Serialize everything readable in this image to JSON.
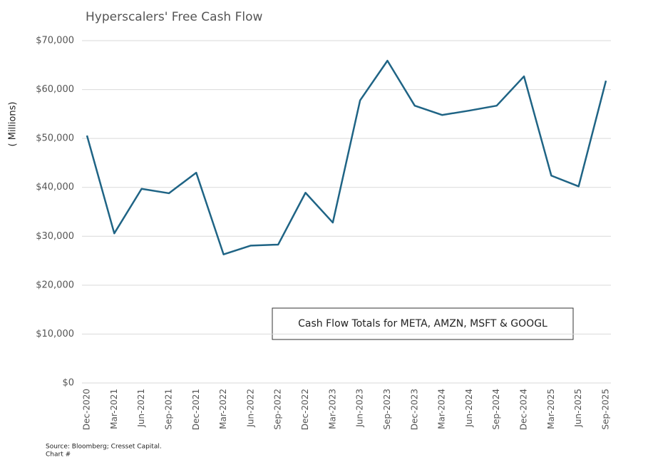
{
  "chart_data": {
    "type": "line",
    "title": "Hyperscalers' Free Cash Flow",
    "y_label": "( Millions)",
    "annotation": "Cash Flow Totals for META, AMZN, MSFT & GOOGL",
    "source": "Source: Bloomberg; Cresset Capital.",
    "note": "Chart #",
    "categories": [
      "Dec-2020",
      "Mar-2021",
      "Jun-2021",
      "Sep-2021",
      "Dec-2021",
      "Mar-2022",
      "Jun-2022",
      "Sep-2022",
      "Dec-2022",
      "Mar-2023",
      "Jun-2023",
      "Sep-2023",
      "Dec-2023",
      "Mar-2024",
      "Jun-2024",
      "Sep-2024",
      "Dec-2024",
      "Mar-2025",
      "Jun-2025",
      "Sep-2025"
    ],
    "values": [
      50600,
      30600,
      39700,
      38800,
      43000,
      26300,
      28100,
      28300,
      38900,
      32800,
      57800,
      65900,
      56700,
      54800,
      55700,
      56700,
      62700,
      42400,
      40200,
      61800
    ],
    "color": "#1f6485",
    "ylim": [
      0,
      70000
    ],
    "yticks": [
      {
        "value": 0,
        "label": "$0"
      },
      {
        "value": 10000,
        "label": "$10,000"
      },
      {
        "value": 20000,
        "label": "$20,000"
      },
      {
        "value": 30000,
        "label": "$30,000"
      },
      {
        "value": 40000,
        "label": "$40,000"
      },
      {
        "value": 50000,
        "label": "$50,000"
      },
      {
        "value": 60000,
        "label": "$60,000"
      },
      {
        "value": 70000,
        "label": "$70,000"
      }
    ],
    "grid": true
  }
}
